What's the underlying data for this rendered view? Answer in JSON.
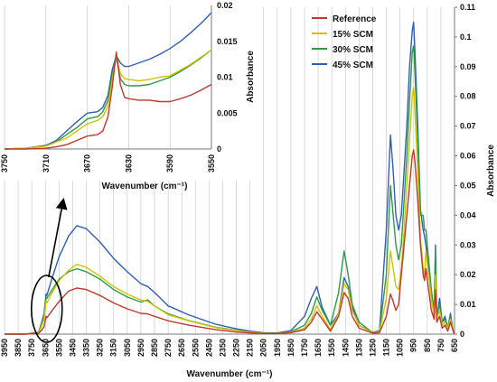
{
  "chart_data": [
    {
      "type": "line",
      "title": "",
      "xlabel": "Wavenumber (cm⁻¹)",
      "ylabel": "Absorbance",
      "xlim": [
        3950,
        650
      ],
      "ylim": [
        0,
        0.11
      ],
      "x_ticks": [
        3950,
        3850,
        3750,
        3650,
        3550,
        3450,
        3350,
        3250,
        3150,
        3050,
        2950,
        2850,
        2750,
        2650,
        2550,
        2450,
        2350,
        2250,
        2150,
        2050,
        1950,
        1850,
        1750,
        1650,
        1550,
        1450,
        1350,
        1250,
        1150,
        1050,
        950,
        850,
        750,
        650
      ],
      "y_ticks": [
        0,
        0.01,
        0.02,
        0.03,
        0.04,
        0.05,
        0.06,
        0.07,
        0.08,
        0.09,
        0.1,
        0.11
      ],
      "y_tick_labels": [
        "0",
        "0.01",
        "0.02",
        "0.03",
        "0.04",
        "0.05",
        "0.06",
        "0.07",
        "0.08",
        "0.09",
        "0.1",
        "0.11"
      ],
      "grid": "vertical",
      "legend_position": "top-right",
      "series": [
        {
          "name": "Reference",
          "color": "#c0392b",
          "x": [
            3950,
            3800,
            3700,
            3680,
            3660,
            3645,
            3640,
            3600,
            3550,
            3480,
            3420,
            3350,
            3250,
            3150,
            3050,
            2950,
            2900,
            2850,
            2750,
            2600,
            2400,
            2250,
            2150,
            2050,
            1950,
            1850,
            1750,
            1700,
            1660,
            1620,
            1560,
            1500,
            1460,
            1430,
            1400,
            1350,
            1250,
            1200,
            1150,
            1120,
            1100,
            1080,
            1060,
            1040,
            1020,
            1000,
            980,
            960,
            950,
            940,
            920,
            900,
            880,
            870,
            860,
            840,
            820,
            800,
            790,
            780,
            760,
            740,
            720,
            700,
            680,
            660,
            650
          ],
          "y": [
            0,
            0,
            0.0003,
            0.0012,
            0.0025,
            0.006,
            0.0055,
            0.008,
            0.011,
            0.0145,
            0.0155,
            0.015,
            0.013,
            0.0105,
            0.0085,
            0.007,
            0.0068,
            0.006,
            0.0045,
            0.003,
            0.0015,
            0.0007,
            0.0004,
            0.0002,
            0.0002,
            0.0005,
            0.0015,
            0.004,
            0.0075,
            0.005,
            0.001,
            0.006,
            0.014,
            0.012,
            0.006,
            0.002,
            0.0003,
            0.0005,
            0.006,
            0.0135,
            0.011,
            0.008,
            0.01,
            0.02,
            0.03,
            0.04,
            0.05,
            0.06,
            0.062,
            0.058,
            0.045,
            0.03,
            0.02,
            0.018,
            0.022,
            0.015,
            0.008,
            0.005,
            0.015,
            0.004,
            0.006,
            0.002,
            0.003,
            0.001,
            0.004,
            0.001,
            0
          ]
        },
        {
          "name": "15% SCM",
          "color": "#d4c200",
          "x": [
            3950,
            3800,
            3700,
            3680,
            3660,
            3645,
            3640,
            3600,
            3550,
            3480,
            3420,
            3350,
            3250,
            3150,
            3050,
            2950,
            2900,
            2850,
            2750,
            2600,
            2400,
            2250,
            2150,
            2050,
            1950,
            1850,
            1750,
            1700,
            1660,
            1620,
            1560,
            1500,
            1460,
            1430,
            1400,
            1350,
            1250,
            1200,
            1150,
            1120,
            1100,
            1080,
            1060,
            1040,
            1020,
            1000,
            980,
            960,
            950,
            940,
            920,
            900,
            880,
            870,
            860,
            840,
            820,
            800,
            790,
            780,
            760,
            740,
            720,
            700,
            680,
            660,
            650
          ],
          "y": [
            0,
            0,
            0.0004,
            0.0025,
            0.005,
            0.011,
            0.0105,
            0.014,
            0.018,
            0.0215,
            0.0235,
            0.0225,
            0.0195,
            0.016,
            0.0135,
            0.0115,
            0.011,
            0.0095,
            0.0065,
            0.0045,
            0.0022,
            0.0012,
            0.0006,
            0.0003,
            0.0002,
            0.0006,
            0.002,
            0.005,
            0.0095,
            0.006,
            0.0015,
            0.007,
            0.017,
            0.015,
            0.008,
            0.003,
            0.0004,
            0.0008,
            0.012,
            0.028,
            0.022,
            0.016,
            0.015,
            0.022,
            0.035,
            0.05,
            0.065,
            0.08,
            0.083,
            0.075,
            0.055,
            0.032,
            0.022,
            0.02,
            0.028,
            0.02,
            0.012,
            0.006,
            0.02,
            0.005,
            0.008,
            0.003,
            0.004,
            0.002,
            0.005,
            0.001,
            0
          ]
        },
        {
          "name": "30% SCM",
          "color": "#2e9a4a",
          "x": [
            3950,
            3800,
            3700,
            3680,
            3660,
            3645,
            3640,
            3600,
            3550,
            3480,
            3420,
            3350,
            3250,
            3150,
            3050,
            2950,
            2900,
            2850,
            2750,
            2600,
            2400,
            2250,
            2150,
            2050,
            1950,
            1850,
            1750,
            1700,
            1660,
            1620,
            1560,
            1500,
            1460,
            1430,
            1400,
            1350,
            1250,
            1200,
            1150,
            1120,
            1100,
            1080,
            1060,
            1040,
            1020,
            1000,
            980,
            960,
            950,
            940,
            920,
            900,
            880,
            870,
            860,
            840,
            820,
            800,
            790,
            780,
            760,
            740,
            720,
            700,
            680,
            660,
            650
          ],
          "y": [
            0,
            0,
            0.0005,
            0.003,
            0.006,
            0.0125,
            0.012,
            0.015,
            0.0185,
            0.021,
            0.022,
            0.021,
            0.0185,
            0.015,
            0.0125,
            0.0108,
            0.0115,
            0.0095,
            0.0068,
            0.0046,
            0.0023,
            0.0013,
            0.0007,
            0.0003,
            0.0003,
            0.0008,
            0.003,
            0.007,
            0.0125,
            0.008,
            0.003,
            0.014,
            0.028,
            0.02,
            0.01,
            0.004,
            0.0005,
            0.001,
            0.02,
            0.05,
            0.04,
            0.03,
            0.025,
            0.03,
            0.045,
            0.06,
            0.078,
            0.095,
            0.097,
            0.088,
            0.065,
            0.04,
            0.04,
            0.035,
            0.035,
            0.025,
            0.015,
            0.008,
            0.028,
            0.006,
            0.01,
            0.004,
            0.005,
            0.002,
            0.006,
            0.001,
            0
          ]
        },
        {
          "name": "45% SCM",
          "color": "#2f5fb3",
          "x": [
            3950,
            3800,
            3700,
            3680,
            3660,
            3645,
            3640,
            3600,
            3550,
            3480,
            3420,
            3350,
            3250,
            3150,
            3050,
            2950,
            2900,
            2850,
            2750,
            2600,
            2400,
            2250,
            2150,
            2050,
            1950,
            1850,
            1750,
            1700,
            1660,
            1620,
            1560,
            1500,
            1460,
            1430,
            1400,
            1350,
            1250,
            1200,
            1150,
            1120,
            1100,
            1080,
            1060,
            1040,
            1020,
            1000,
            980,
            960,
            950,
            940,
            920,
            900,
            880,
            870,
            860,
            840,
            820,
            800,
            790,
            780,
            760,
            740,
            720,
            700,
            680,
            660,
            650
          ],
          "y": [
            0,
            0,
            0.0006,
            0.0035,
            0.007,
            0.0135,
            0.013,
            0.019,
            0.026,
            0.033,
            0.0365,
            0.0355,
            0.031,
            0.0255,
            0.021,
            0.017,
            0.016,
            0.014,
            0.0095,
            0.0065,
            0.0033,
            0.0018,
            0.001,
            0.0005,
            0.0004,
            0.0012,
            0.006,
            0.012,
            0.016,
            0.009,
            0.003,
            0.007,
            0.019,
            0.016,
            0.009,
            0.003,
            0.0006,
            0.0012,
            0.035,
            0.067,
            0.055,
            0.04,
            0.035,
            0.04,
            0.055,
            0.07,
            0.09,
            0.102,
            0.105,
            0.095,
            0.07,
            0.042,
            0.035,
            0.033,
            0.03,
            0.022,
            0.012,
            0.007,
            0.03,
            0.005,
            0.012,
            0.004,
            0.006,
            0.002,
            0.007,
            0.001,
            0
          ]
        }
      ]
    },
    {
      "type": "line",
      "title": "",
      "xlabel": "Wavenumber (cm⁻¹)",
      "ylabel": "Absorbance",
      "xlim": [
        3750,
        3550
      ],
      "ylim": [
        0,
        0.02
      ],
      "x_ticks": [
        3750,
        3710,
        3670,
        3630,
        3590,
        3550
      ],
      "y_ticks": [
        0,
        0.005,
        0.01,
        0.015,
        0.02
      ],
      "y_tick_labels": [
        "0",
        "0.005",
        "0.01",
        "0.015",
        "0.02"
      ],
      "grid": "vertical",
      "series": [
        {
          "name": "Reference",
          "color": "#c0392b",
          "x": [
            3750,
            3730,
            3710,
            3700,
            3690,
            3680,
            3670,
            3660,
            3655,
            3650,
            3646,
            3642,
            3638,
            3634,
            3630,
            3620,
            3610,
            3600,
            3590,
            3580,
            3570,
            3560,
            3550
          ],
          "y": [
            0,
            0,
            0.0001,
            0.0003,
            0.0006,
            0.0012,
            0.0018,
            0.002,
            0.0025,
            0.0045,
            0.0085,
            0.0135,
            0.009,
            0.0072,
            0.007,
            0.0068,
            0.0068,
            0.0066,
            0.0066,
            0.007,
            0.0075,
            0.0082,
            0.009
          ]
        },
        {
          "name": "15% SCM",
          "color": "#d4c200",
          "x": [
            3750,
            3730,
            3710,
            3700,
            3690,
            3680,
            3670,
            3660,
            3655,
            3650,
            3646,
            3642,
            3638,
            3634,
            3630,
            3620,
            3610,
            3600,
            3590,
            3580,
            3570,
            3560,
            3550
          ],
          "y": [
            0,
            0.0001,
            0.0004,
            0.001,
            0.0015,
            0.0025,
            0.0035,
            0.004,
            0.0045,
            0.006,
            0.0095,
            0.013,
            0.0105,
            0.0098,
            0.0097,
            0.0095,
            0.0097,
            0.01,
            0.0102,
            0.011,
            0.0118,
            0.0128,
            0.0138
          ]
        },
        {
          "name": "30% SCM",
          "color": "#2e9a4a",
          "x": [
            3750,
            3730,
            3710,
            3700,
            3690,
            3680,
            3670,
            3660,
            3655,
            3650,
            3646,
            3642,
            3638,
            3634,
            3630,
            3620,
            3610,
            3600,
            3590,
            3580,
            3570,
            3560,
            3550
          ],
          "y": [
            0,
            0.0001,
            0.0004,
            0.001,
            0.002,
            0.003,
            0.0042,
            0.0045,
            0.0052,
            0.0068,
            0.0103,
            0.0128,
            0.0098,
            0.009,
            0.0088,
            0.0088,
            0.009,
            0.0095,
            0.01,
            0.0108,
            0.0117,
            0.0127,
            0.0138
          ]
        },
        {
          "name": "45% SCM",
          "color": "#2f5fb3",
          "x": [
            3750,
            3730,
            3710,
            3700,
            3690,
            3680,
            3670,
            3660,
            3655,
            3650,
            3646,
            3642,
            3638,
            3634,
            3630,
            3620,
            3610,
            3600,
            3590,
            3580,
            3570,
            3560,
            3550
          ],
          "y": [
            0,
            0.0001,
            0.0005,
            0.0012,
            0.0025,
            0.0038,
            0.005,
            0.0052,
            0.0058,
            0.0075,
            0.011,
            0.013,
            0.012,
            0.0115,
            0.0115,
            0.012,
            0.0125,
            0.0132,
            0.014,
            0.015,
            0.0162,
            0.0175,
            0.019
          ]
        }
      ]
    }
  ]
}
